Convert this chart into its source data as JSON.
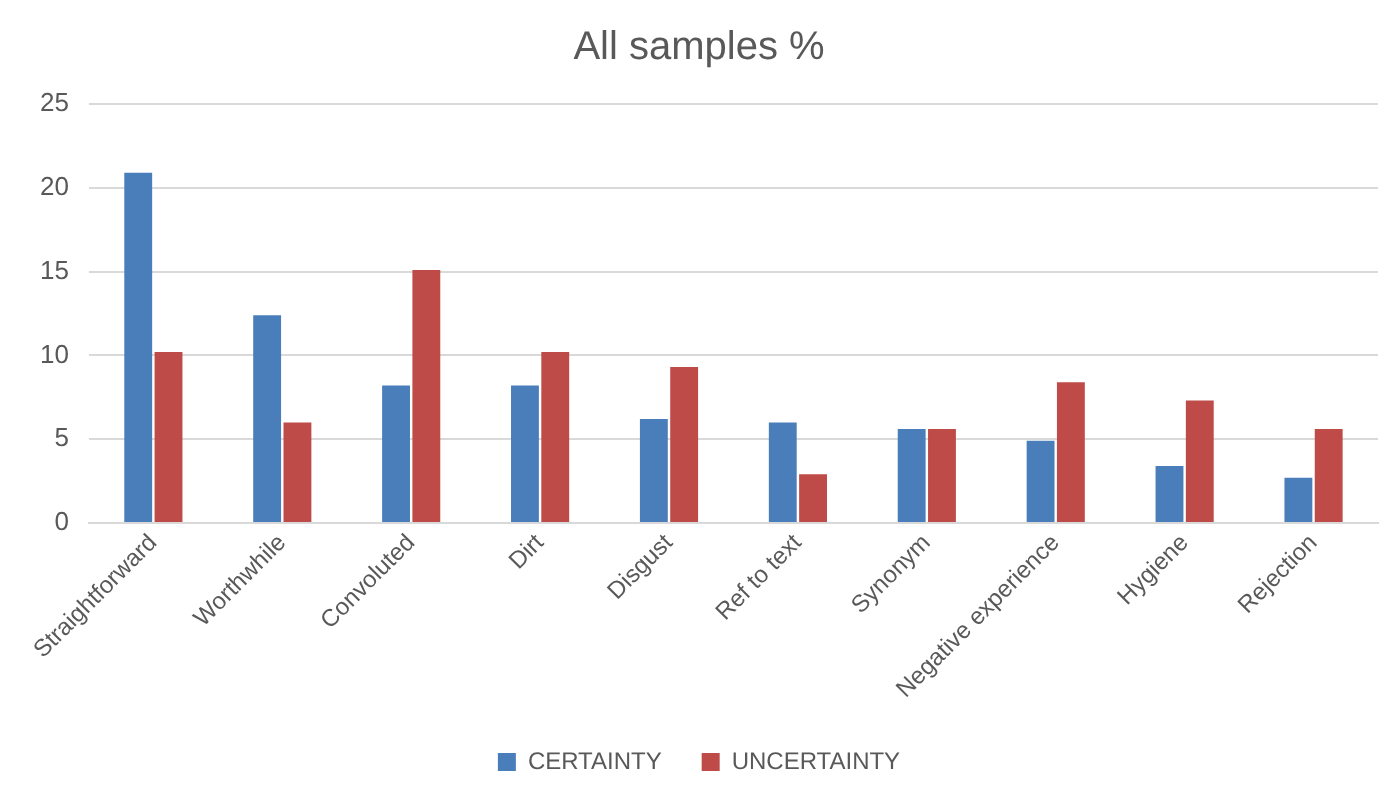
{
  "chart_data": {
    "type": "bar",
    "title": "All samples %",
    "categories": [
      "Straightforward",
      "Worthwhile",
      "Convoluted",
      "Dirt",
      "Disgust",
      "Ref to text",
      "Synonym",
      "Negative experience",
      "Hygiene",
      "Rejection"
    ],
    "series": [
      {
        "name": "CERTAINTY",
        "color": "#4a7ebb",
        "values": [
          20.9,
          12.4,
          8.2,
          8.2,
          6.2,
          6.0,
          5.6,
          4.9,
          3.4,
          2.7
        ]
      },
      {
        "name": "UNCERTAINTY",
        "color": "#be4b48",
        "values": [
          10.2,
          6.0,
          15.1,
          10.2,
          9.3,
          2.9,
          5.6,
          8.4,
          7.3,
          5.6
        ]
      }
    ],
    "ylim": [
      0,
      25
    ],
    "yticks": [
      0,
      5,
      10,
      15,
      20,
      25
    ],
    "grid": "y",
    "legend": "bottom"
  }
}
